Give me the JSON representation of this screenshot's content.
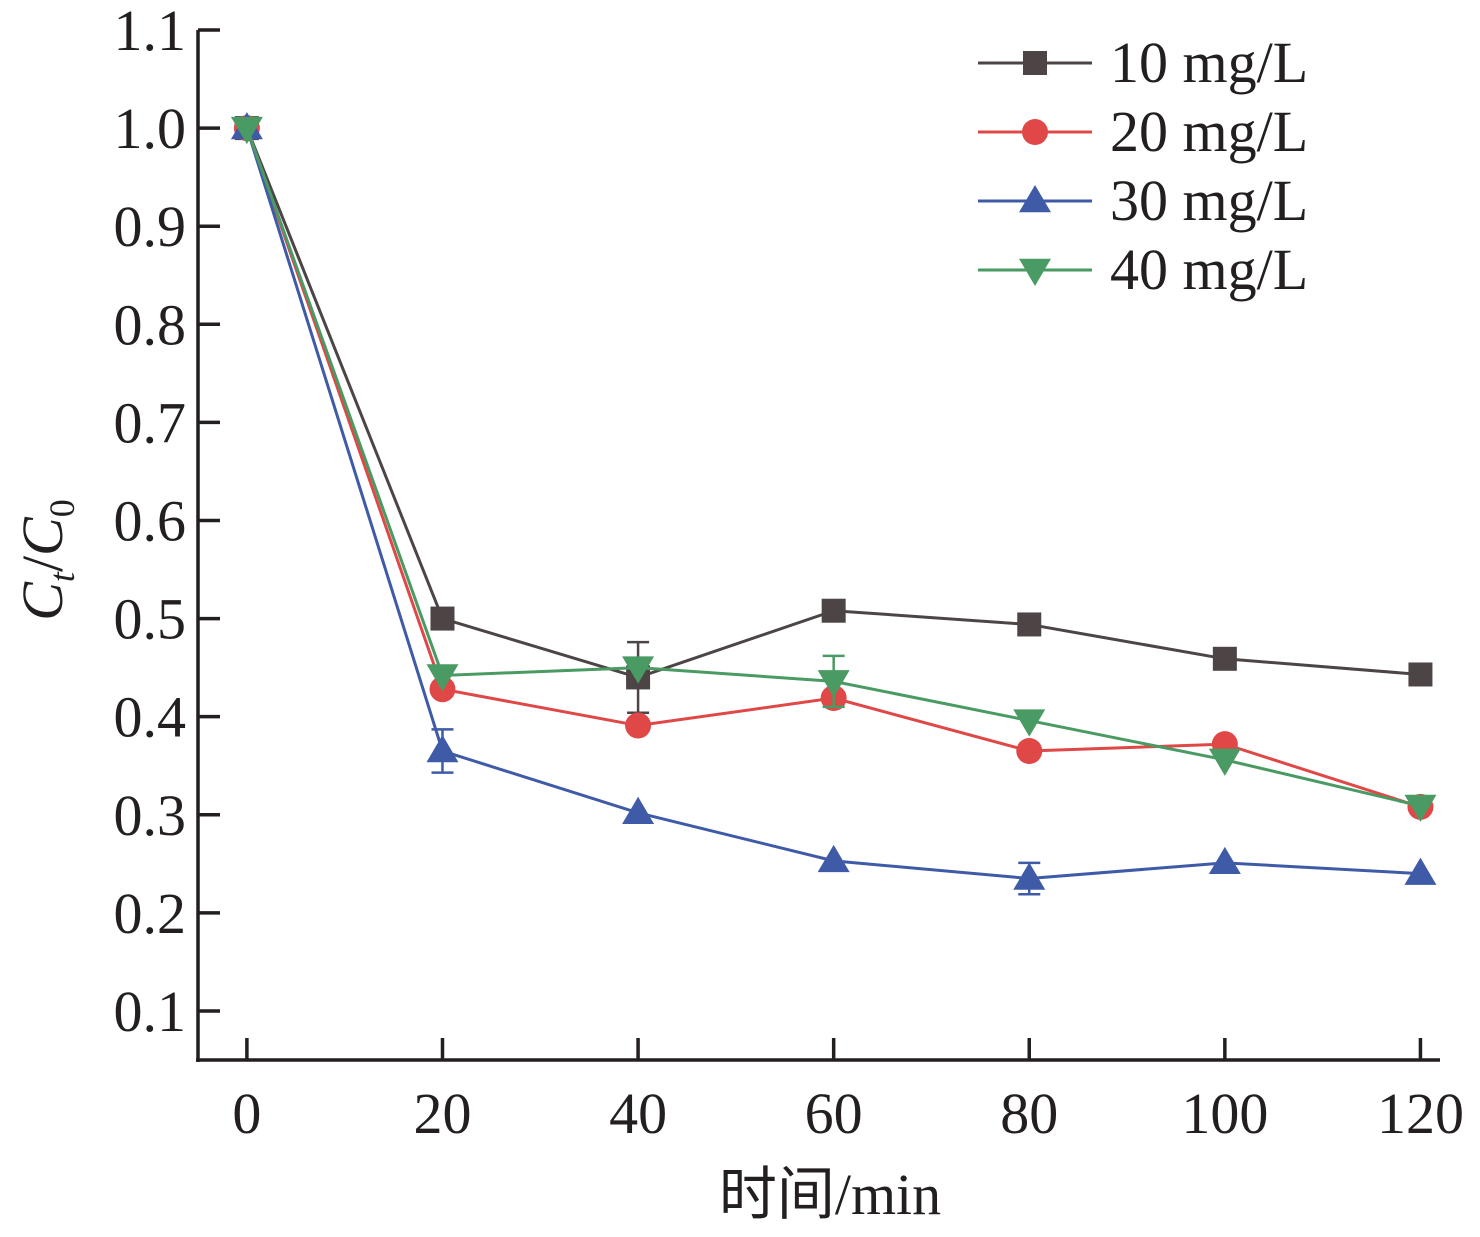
{
  "chart_data": {
    "type": "line",
    "xlabel": "时间/min",
    "ylabel": {
      "main": "C",
      "sub1": "t",
      "slash": "/",
      "main2": "C",
      "sub2": "0"
    },
    "xlim": [
      -5,
      122
    ],
    "ylim": [
      0.05,
      1.1
    ],
    "xticks": [
      0,
      20,
      40,
      60,
      80,
      100,
      120
    ],
    "xtick_labels": [
      "0",
      "20",
      "40",
      "60",
      "80",
      "100",
      "120"
    ],
    "yticks": [
      0.1,
      0.2,
      0.3,
      0.4,
      0.5,
      0.6,
      0.7,
      0.8,
      0.9,
      1.0,
      1.1
    ],
    "ytick_labels": [
      "0.1",
      "0.2",
      "0.3",
      "0.4",
      "0.5",
      "0.6",
      "0.7",
      "0.8",
      "0.9",
      "1.0",
      "1.1"
    ],
    "x": [
      0,
      20,
      40,
      60,
      80,
      100,
      120
    ],
    "grid": false,
    "legend_position": "top-right",
    "series": [
      {
        "name": "10 mg/L",
        "color": "#4d4545",
        "marker": "square",
        "values": [
          1.0,
          0.5,
          0.44,
          0.508,
          0.494,
          0.459,
          0.443
        ],
        "errors": [
          0,
          0,
          0.036,
          0,
          0,
          0,
          0
        ]
      },
      {
        "name": "20 mg/L",
        "color": "#e04848",
        "marker": "circle",
        "values": [
          1.0,
          0.428,
          0.391,
          0.419,
          0.365,
          0.372,
          0.308
        ],
        "errors": [
          0,
          0,
          0,
          0,
          0,
          0,
          0
        ]
      },
      {
        "name": "30 mg/L",
        "color": "#3f5ba8",
        "marker": "triangle-up",
        "values": [
          1.0,
          0.365,
          0.302,
          0.253,
          0.235,
          0.251,
          0.24
        ],
        "errors": [
          0,
          0.022,
          0,
          0,
          0.016,
          0,
          0
        ]
      },
      {
        "name": "40 mg/L",
        "color": "#4a9a63",
        "marker": "triangle-down",
        "values": [
          1.0,
          0.442,
          0.45,
          0.436,
          0.396,
          0.356,
          0.309
        ],
        "errors": [
          0,
          0,
          0,
          0.026,
          0,
          0,
          0
        ]
      }
    ]
  }
}
